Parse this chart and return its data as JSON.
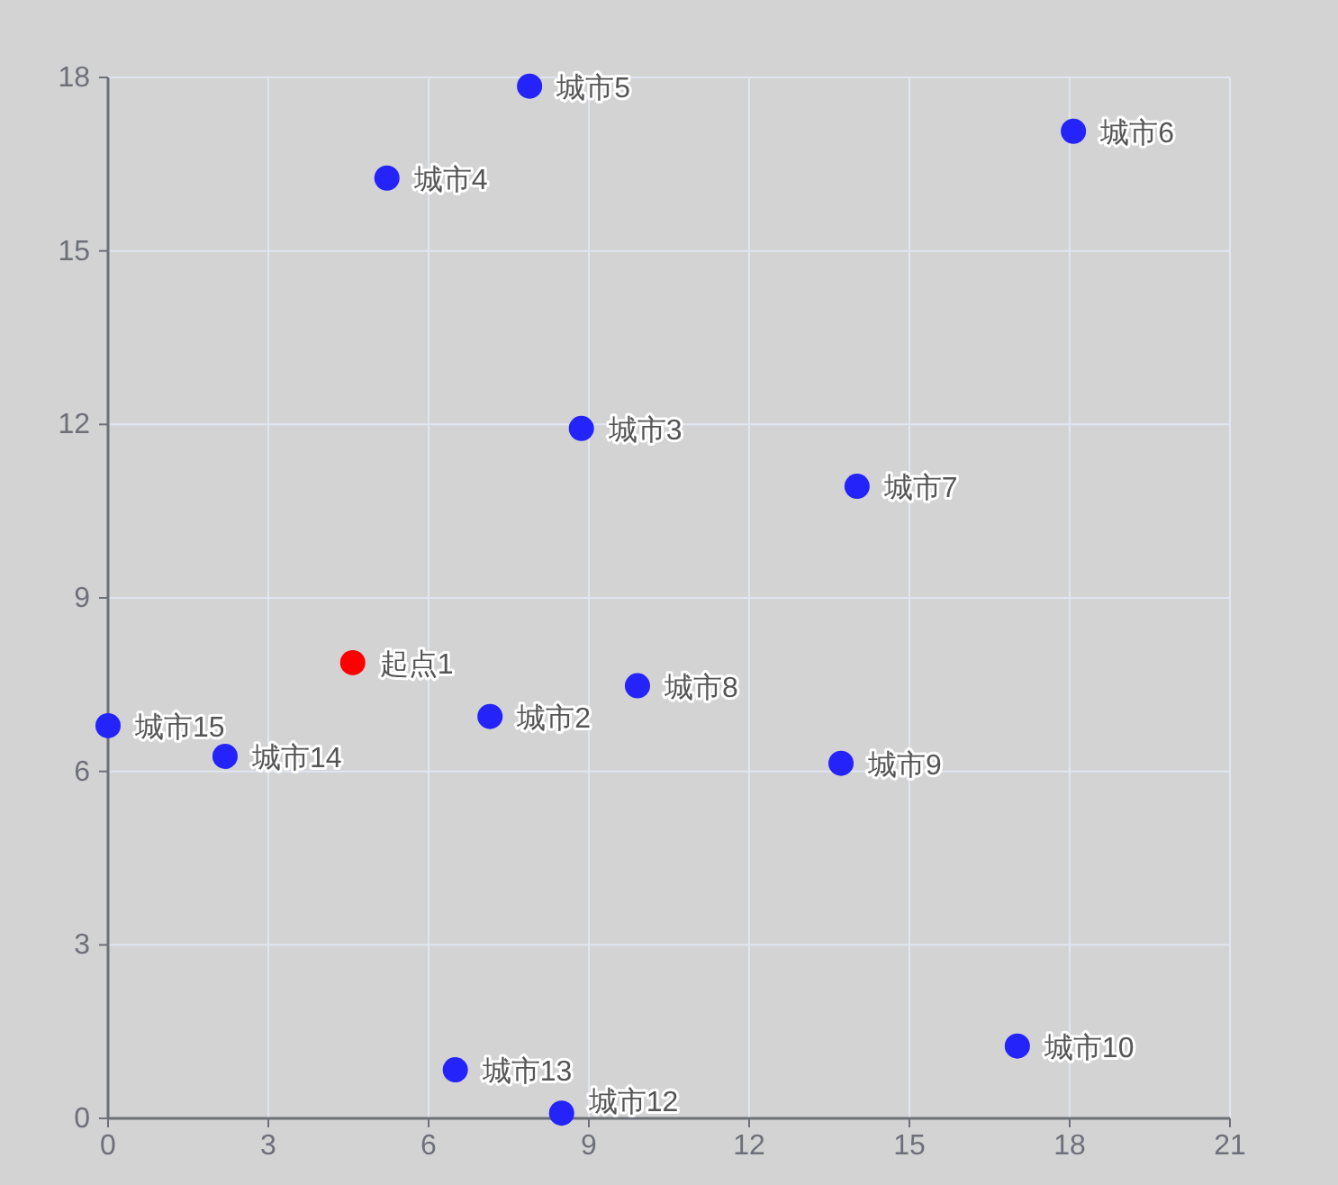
{
  "chart_data": {
    "type": "scatter",
    "x": [
      4.58,
      7.15,
      8.86,
      5.22,
      7.89,
      18.07,
      14.02,
      9.91,
      13.72,
      17.02,
      8.49,
      6.5,
      2.19,
      0
    ],
    "values": [
      7.88,
      6.95,
      11.93,
      16.26,
      17.85,
      17.07,
      10.93,
      7.48,
      6.14,
      1.25,
      0.09,
      0.84,
      6.26,
      6.79
    ],
    "colors": [
      "#ff0000",
      "#2323fa",
      "#2323fa",
      "#2323fa",
      "#2323fa",
      "#2323fa",
      "#2323fa",
      "#2323fa",
      "#2323fa",
      "#2323fa",
      "#2323fa",
      "#2323fa",
      "#2323fa",
      "#2323fa"
    ],
    "value_labels": [
      "起点1",
      "城市2",
      "城市3",
      "城市4",
      "城市5",
      "城市6",
      "城市7",
      "城市8",
      "城市9",
      "城市10",
      "城市12",
      "城市13",
      "城市14",
      "城市15"
    ],
    "xlim": [
      0,
      21
    ],
    "xticks": [
      0,
      3,
      6,
      9,
      12,
      15,
      18,
      21
    ],
    "ylim": [
      0,
      18
    ],
    "yticks": [
      0,
      3,
      6,
      9,
      12,
      15,
      18
    ],
    "grid": true,
    "marker": "circle"
  }
}
